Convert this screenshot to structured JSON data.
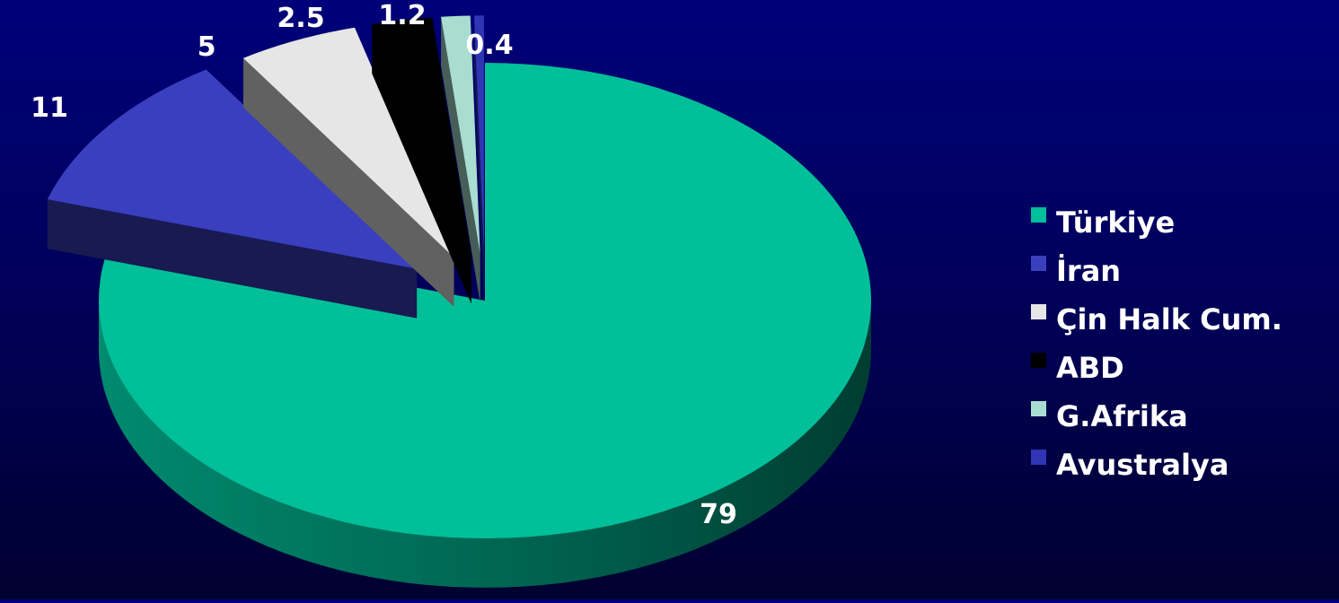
{
  "chart_data": {
    "type": "pie",
    "title": "",
    "categories": [
      "Türkiye",
      "İran",
      "Çin Halk Cum.",
      "ABD",
      "G.Afrika",
      "Avustralya"
    ],
    "values": [
      79,
      11,
      5,
      2.5,
      1.2,
      0.4
    ],
    "data_labels": [
      "79",
      "11",
      "5",
      "2.5",
      "1.2",
      "0.4"
    ],
    "colors": [
      "#00bf99",
      "#3a3fbf",
      "#e6e6e6",
      "#000000",
      "#a8ddcf",
      "#2f35b5"
    ],
    "style": "3d-exploded",
    "legend": "right"
  }
}
